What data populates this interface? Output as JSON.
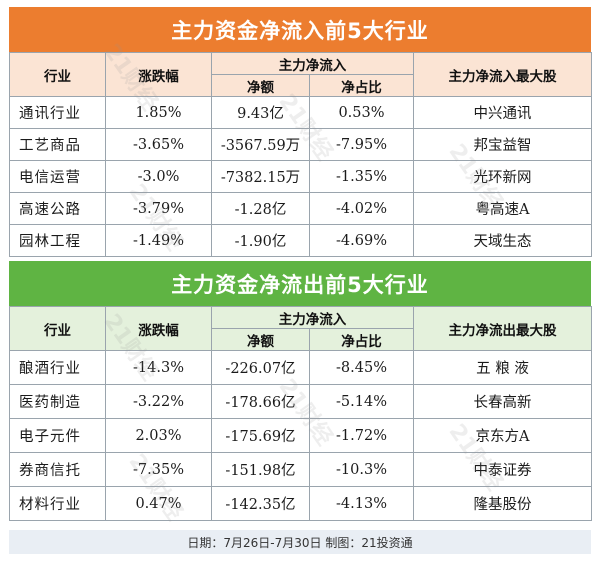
{
  "inflow": {
    "title": "主力资金净流入前5大行业",
    "headers": {
      "industry": "行业",
      "change": "涨跌幅",
      "group": "主力净流入",
      "amount": "净额",
      "ratio": "净占比",
      "top_stock": "主力净流入最大股"
    },
    "rows": [
      {
        "industry": "通讯行业",
        "change": "1.85%",
        "amount": "9.43亿",
        "ratio": "0.53%",
        "stock": "中兴通讯"
      },
      {
        "industry": "工艺商品",
        "change": "-3.65%",
        "amount": "-3567.59万",
        "ratio": "-7.95%",
        "stock": "邦宝益智"
      },
      {
        "industry": "电信运营",
        "change": "-3.0%",
        "amount": "-7382.15万",
        "ratio": "-1.35%",
        "stock": "光环新网"
      },
      {
        "industry": "高速公路",
        "change": "-3.79%",
        "amount": "-1.28亿",
        "ratio": "-4.02%",
        "stock": "粤高速A"
      },
      {
        "industry": "园林工程",
        "change": "-1.49%",
        "amount": "-1.90亿",
        "ratio": "-4.69%",
        "stock": "天域生态"
      }
    ]
  },
  "outflow": {
    "title": "主力资金净流出前5大行业",
    "headers": {
      "industry": "行业",
      "change": "涨跌幅",
      "group": "主力净流入",
      "amount": "净额",
      "ratio": "净占比",
      "top_stock": "主力净流出最大股"
    },
    "rows": [
      {
        "industry": "酿酒行业",
        "change": "-14.3%",
        "amount": "-226.07亿",
        "ratio": "-8.45%",
        "stock": "五 粮 液"
      },
      {
        "industry": "医药制造",
        "change": "-3.22%",
        "amount": "-178.66亿",
        "ratio": "-5.14%",
        "stock": "长春高新"
      },
      {
        "industry": "电子元件",
        "change": "2.03%",
        "amount": "-175.69亿",
        "ratio": "-1.72%",
        "stock": "京东方A"
      },
      {
        "industry": "券商信托",
        "change": "-7.35%",
        "amount": "-151.98亿",
        "ratio": "-10.3%",
        "stock": "中泰证券"
      },
      {
        "industry": "材料行业",
        "change": "0.47%",
        "amount": "-142.35亿",
        "ratio": "-4.13%",
        "stock": "隆基股份"
      }
    ]
  },
  "footer": "日期：7月26日-7月30日  制图：21投资通",
  "watermark": "21财经",
  "colors": {
    "inflow_band": "#ec7d2f",
    "outflow_band": "#5fb443",
    "inflow_header": "#fbe4d4",
    "outflow_header": "#e4f1dc"
  }
}
